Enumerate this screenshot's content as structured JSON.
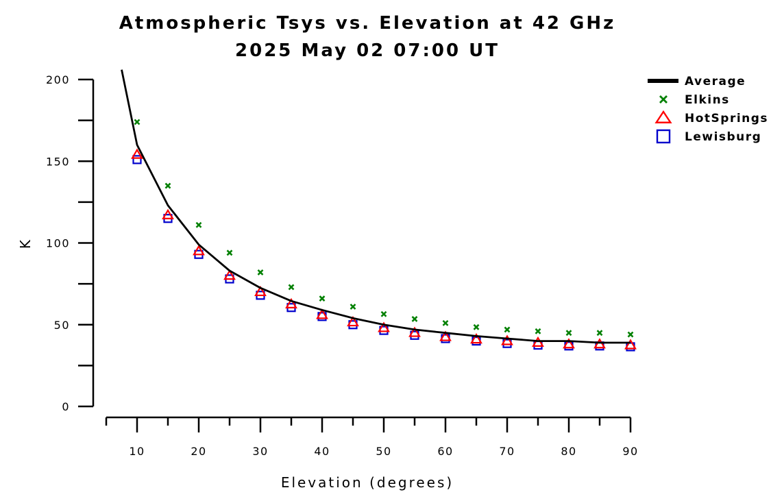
{
  "chart_data": {
    "type": "scatter",
    "title": "Atmospheric Tsys vs. Elevation at 42 GHz",
    "subtitle": "2025 May 02 07:00 UT",
    "xlabel": "Elevation (degrees)",
    "ylabel": "K",
    "xlim": [
      5,
      90
    ],
    "ylim": [
      0,
      200
    ],
    "x_ticks": [
      10,
      20,
      30,
      40,
      50,
      60,
      70,
      80,
      90
    ],
    "y_ticks": [
      0,
      50,
      100,
      150,
      200
    ],
    "x_tick_labels": [
      "10",
      "20",
      "30",
      "40",
      "50",
      "60",
      "70",
      "80",
      "90"
    ],
    "y_tick_labels": [
      "0",
      "50",
      "100",
      "150",
      "200"
    ],
    "grid": false,
    "legend_position": "top-right",
    "series": [
      {
        "name": "Average",
        "kind": "line",
        "color": "#000000",
        "x": [
          7.5,
          10,
          15,
          20,
          25,
          30,
          35,
          40,
          45,
          50,
          55,
          60,
          65,
          70,
          75,
          80,
          85,
          90
        ],
        "y": [
          206,
          160,
          123,
          99,
          83,
          72.5,
          64.5,
          59,
          54,
          50,
          47,
          45,
          43,
          41.5,
          40,
          40,
          39,
          39
        ]
      },
      {
        "name": "Elkins",
        "kind": "marker",
        "marker": "x",
        "color": "#008000",
        "x": [
          10,
          15,
          20,
          25,
          30,
          35,
          40,
          45,
          50,
          55,
          60,
          65,
          70,
          75,
          80,
          85,
          90
        ],
        "y": [
          174,
          135,
          111,
          94,
          82,
          73,
          66,
          61,
          56.5,
          53.5,
          51,
          48.5,
          47,
          46,
          45,
          45,
          44
        ]
      },
      {
        "name": "HotSprings",
        "kind": "marker",
        "marker": "triangle",
        "color": "#ff0000",
        "x": [
          10,
          15,
          20,
          25,
          30,
          35,
          40,
          45,
          50,
          55,
          60,
          65,
          70,
          75,
          80,
          85,
          90
        ],
        "y": [
          154,
          117,
          95,
          80,
          70,
          62.5,
          56,
          51.5,
          48,
          45,
          42.5,
          41,
          40,
          39,
          38,
          38,
          37.5
        ]
      },
      {
        "name": "Lewisburg",
        "kind": "marker",
        "marker": "square",
        "color": "#0000cc",
        "x": [
          10,
          15,
          20,
          25,
          30,
          35,
          40,
          45,
          50,
          55,
          60,
          65,
          70,
          75,
          80,
          85,
          90
        ],
        "y": [
          151,
          115,
          93,
          78,
          68,
          60.5,
          55,
          50,
          46.5,
          43.5,
          41.5,
          40,
          38.5,
          37.5,
          37,
          37,
          36.5
        ]
      }
    ]
  }
}
